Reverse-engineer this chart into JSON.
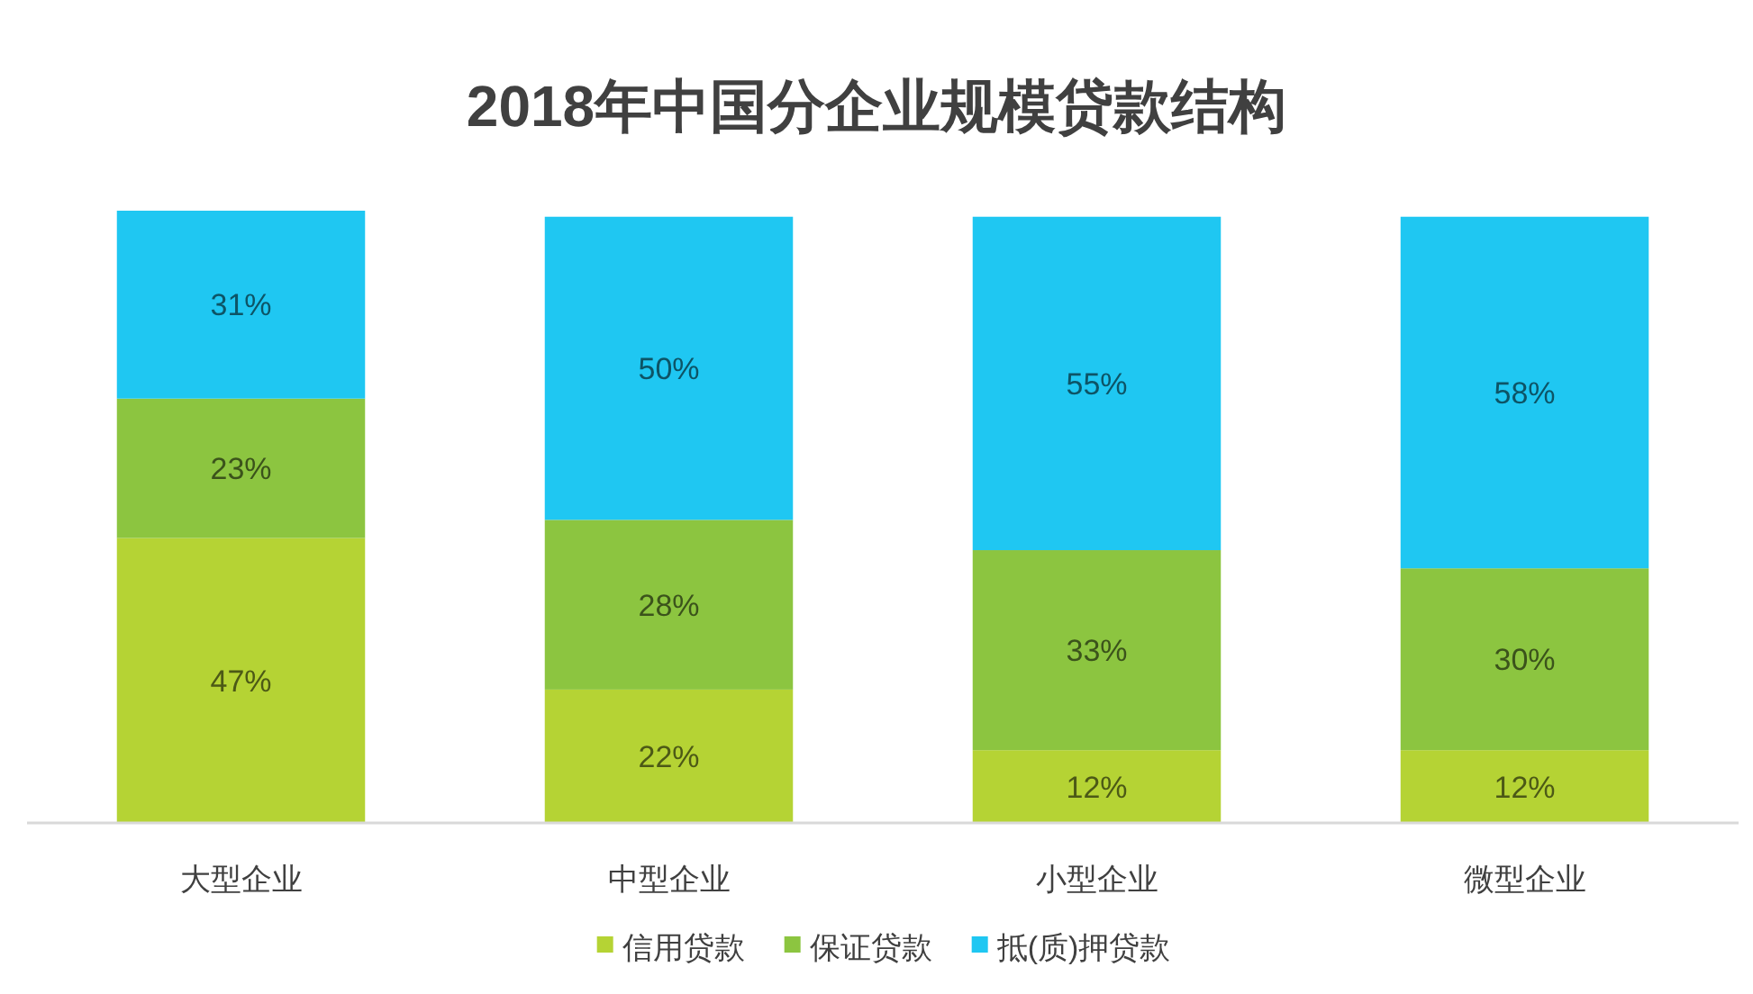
{
  "chart_data": {
    "type": "bar",
    "title": "2018年中国分企业规模贷款结构",
    "categories": [
      "大型企业",
      "中型企业",
      "小型企业",
      "微型企业"
    ],
    "stacked": true,
    "legend": "bottom",
    "series": [
      {
        "name": "信用贷款",
        "color": "#b5d334",
        "values": [
          47,
          22,
          12,
          12
        ],
        "value_labels": [
          "47%",
          "22%",
          "12%",
          "12%"
        ]
      },
      {
        "name": "保证贷款",
        "color": "#8cc540",
        "values": [
          23,
          28,
          33,
          30
        ],
        "value_labels": [
          "23%",
          "28%",
          "33%",
          "30%"
        ]
      },
      {
        "name": "抵(质)押贷款",
        "color": "#1fc7f2",
        "values": [
          31,
          50,
          55,
          58
        ],
        "value_labels": [
          "31%",
          "50%",
          "55%",
          "58%"
        ]
      }
    ]
  }
}
